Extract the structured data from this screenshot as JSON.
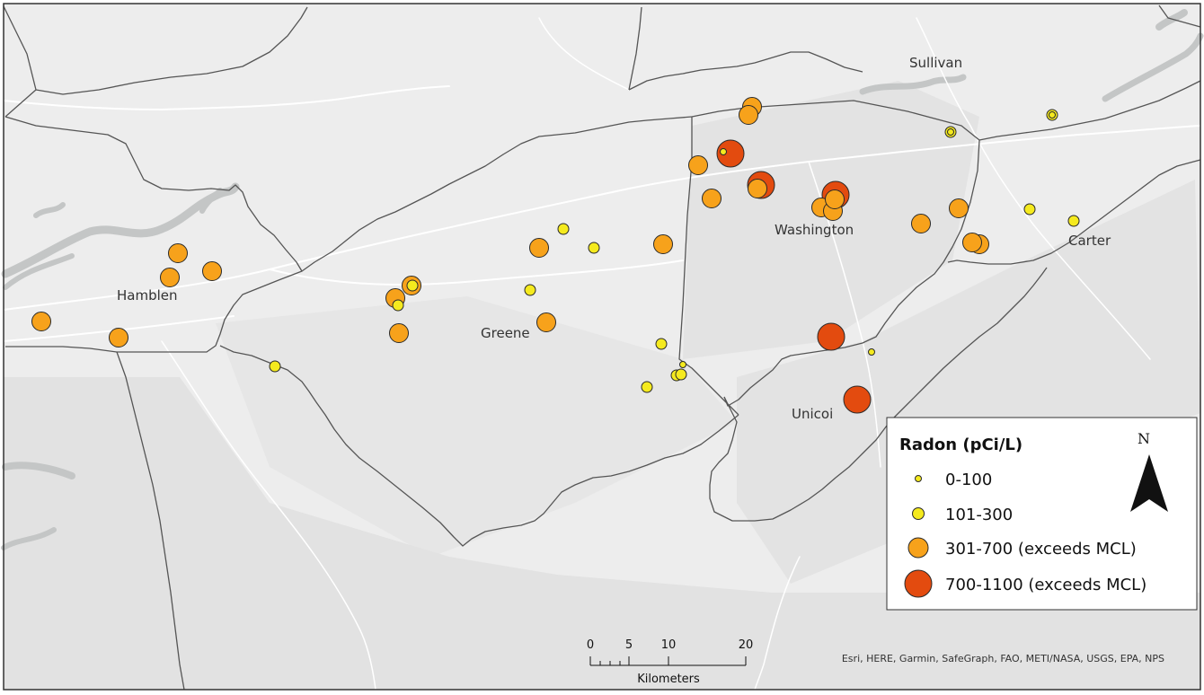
{
  "counties": [
    {
      "name": "Sullivan"
    },
    {
      "name": "Washington"
    },
    {
      "name": "Carter"
    },
    {
      "name": "Hamblen"
    },
    {
      "name": "Greene"
    },
    {
      "name": "Unicoi"
    }
  ],
  "legend": {
    "title": "Radon (pCi/L)",
    "classes": [
      {
        "label": "0-100",
        "color": "#f5ea1e",
        "size": 1
      },
      {
        "label": "101-300",
        "color": "#f5ea1e",
        "size": 2
      },
      {
        "label": "301-700 (exceeds MCL)",
        "color": "#f7a21b",
        "size": 3
      },
      {
        "label": "700-1100 (exceeds MCL)",
        "color": "#e34b0f",
        "size": 4
      }
    ]
  },
  "north_arrow": {
    "label": "N"
  },
  "scale_bar": {
    "ticks": [
      "0",
      "5",
      "10",
      "20"
    ],
    "unit": "Kilometers"
  },
  "attribution": "Esri, HERE, Garmin, SafeGraph, FAO, METI/NASA, USGS, EPA, NPS",
  "colors": {
    "background": "#ededed",
    "water": "#c4c6c6",
    "boundary": "#555555",
    "road": "#ffffff"
  }
}
